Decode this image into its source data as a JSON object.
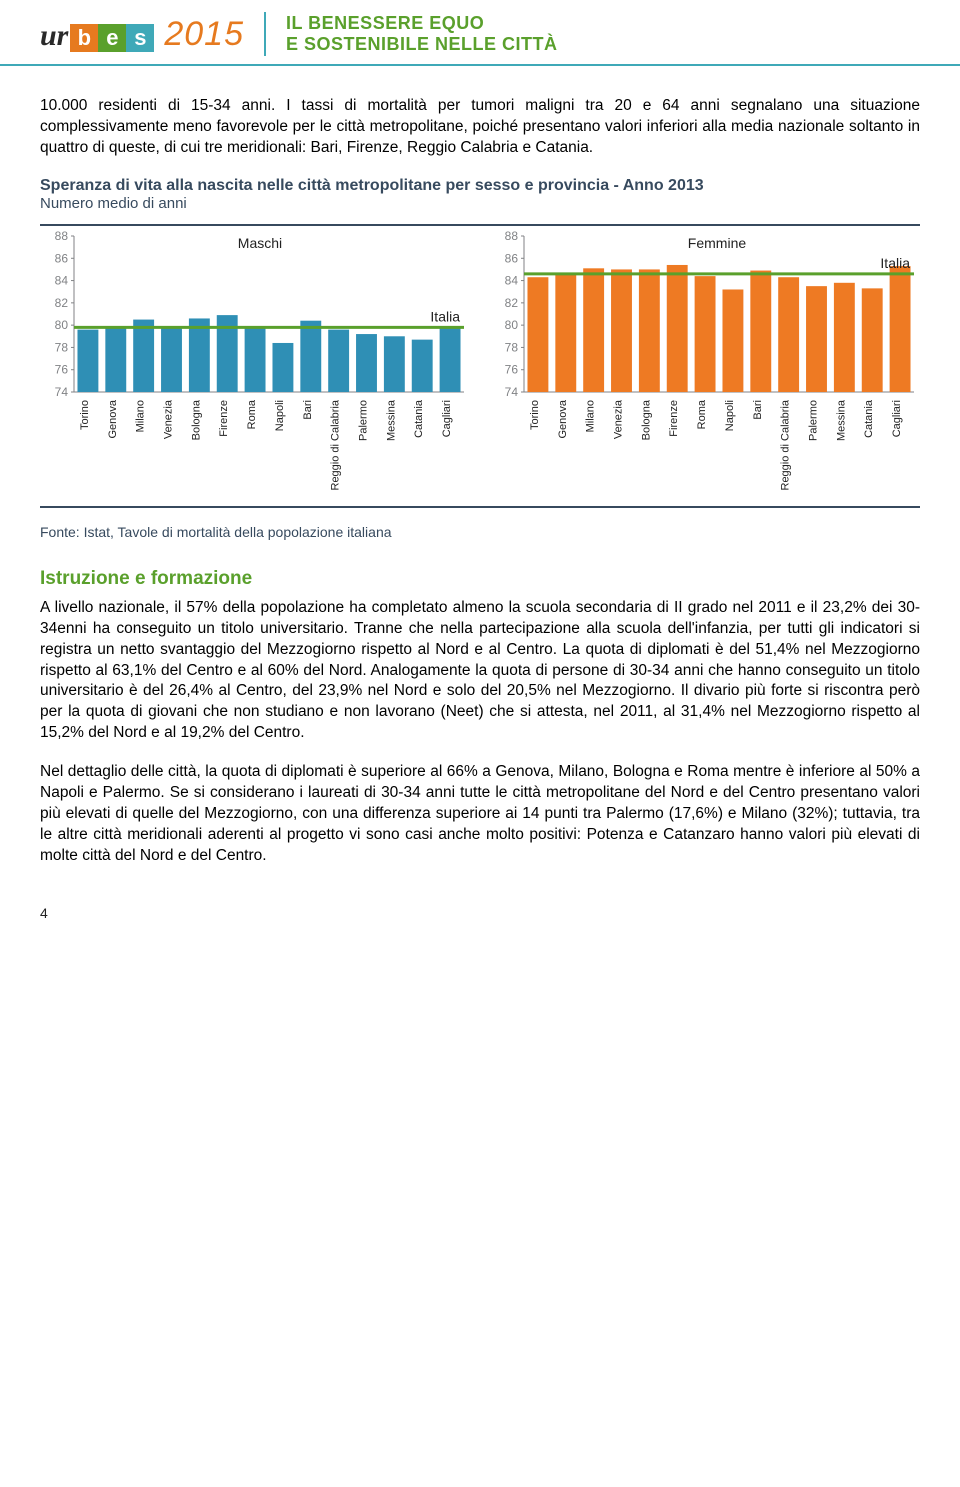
{
  "header": {
    "logo_ur": "ur",
    "logo_b": "b",
    "logo_e": "e",
    "logo_s": "s",
    "year": "2015",
    "tagline_line1": "IL BENESSERE EQUO",
    "tagline_line2": "E SOSTENIBILE NELLE CITTÀ"
  },
  "intro_paragraph": "10.000 residenti di 15-34 anni. I tassi di mortalità per tumori maligni tra 20 e 64 anni segnalano una situazione complessivamente meno favorevole per le città metropolitane, poiché presentano valori inferiori alla media nazionale soltanto in quattro di queste, di cui tre meridionali: Bari, Firenze, Reggio Calabria e Catania.",
  "chart": {
    "title": "Speranza di vita alla nascita nelle città metropolitane per sesso e provincia - Anno 2013",
    "subtitle": "Numero medio di anni",
    "source": "Fonte: Istat, Tavole di mortalità della popolazione italiana",
    "categories": [
      "Torino",
      "Genova",
      "Milano",
      "Venezia",
      "Bologna",
      "Firenze",
      "Roma",
      "Napoli",
      "Bari",
      "Reggio di Calabria",
      "Palermo",
      "Messina",
      "Catania",
      "Cagliari"
    ],
    "ylim": [
      74,
      88
    ],
    "ytick_step": 2,
    "tick_color": "#808285",
    "tick_fontsize": 12,
    "category_fontsize": 11,
    "label_fontsize": 14,
    "grid_color": "#d7d9db",
    "background_color": "#ffffff",
    "bar_width": 0.75,
    "panels": [
      {
        "label": "Maschi",
        "bar_color": "#2f8fb5",
        "line_label": "Italia",
        "line_color": "#5aa02c",
        "italia_value": 79.8,
        "values": [
          79.6,
          79.9,
          80.5,
          79.9,
          80.6,
          80.9,
          79.9,
          78.4,
          80.4,
          79.6,
          79.2,
          79.0,
          78.7,
          79.9
        ]
      },
      {
        "label": "Femmine",
        "bar_color": "#ee7a23",
        "line_label": "Italia",
        "line_color": "#5aa02c",
        "italia_value": 84.6,
        "values": [
          84.3,
          84.5,
          85.1,
          85.0,
          85.0,
          85.4,
          84.4,
          83.2,
          84.9,
          84.3,
          83.5,
          83.8,
          83.3,
          85.3
        ]
      }
    ]
  },
  "section": {
    "heading": "Istruzione e formazione",
    "p1": "A livello nazionale, il 57% della popolazione ha completato almeno la scuola secondaria di II grado nel 2011 e il 23,2% dei 30-34enni ha conseguito un titolo universitario. Tranne che nella partecipazione alla scuola dell'infanzia, per tutti gli indicatori si registra un netto svantaggio del Mezzogiorno rispetto al Nord e al Centro. La quota di diplomati è del 51,4% nel Mezzogiorno rispetto al 63,1% del Centro e al 60% del Nord. Analogamente la quota di persone di 30-34 anni che hanno conseguito un titolo universitario è del 26,4% al Centro, del 23,9% nel Nord e solo del 20,5% nel Mezzogiorno. Il divario più forte si riscontra però per la quota di giovani che non studiano e non lavorano (Neet) che si attesta, nel 2011, al 31,4% nel Mezzogiorno rispetto al 15,2% del Nord e al 19,2% del Centro.",
    "p2": "Nel dettaglio delle città, la quota di diplomati è superiore al 66% a Genova, Milano, Bologna e Roma mentre è inferiore al 50% a Napoli e Palermo. Se si considerano i laureati di 30-34 anni tutte le città metropolitane del Nord e del Centro presentano valori più elevati di quelle del Mezzogiorno, con una differenza superiore ai 14 punti tra Palermo (17,6%) e Milano (32%); tuttavia, tra le altre città meridionali aderenti al progetto vi sono casi anche molto positivi: Potenza e Catanzaro hanno valori più elevati di molte città del Nord e del Centro."
  },
  "page_number": "4"
}
